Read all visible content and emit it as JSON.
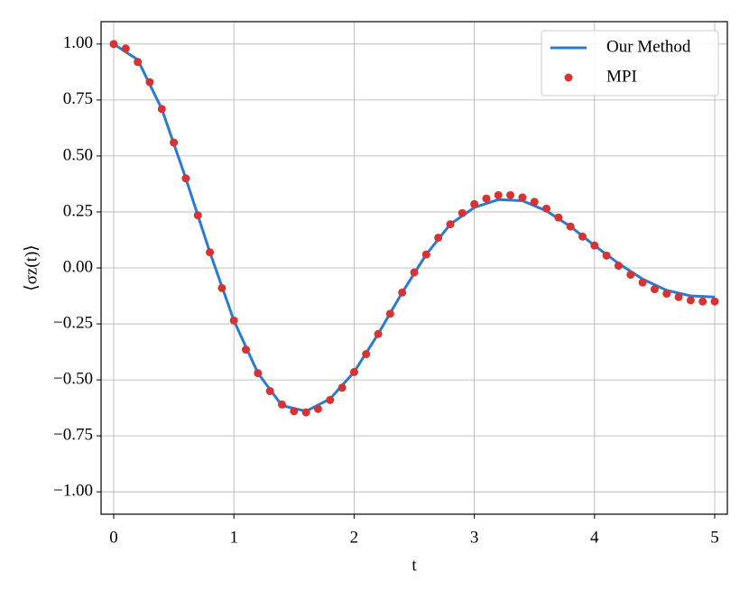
{
  "chart_data": {
    "type": "line",
    "xlabel": "t",
    "ylabel": "⟨σz(t)⟩",
    "xlim": [
      -0.105,
      5.105
    ],
    "ylim": [
      -1.1,
      1.1
    ],
    "xticks": [
      0,
      1,
      2,
      3,
      4,
      5
    ],
    "yticks": [
      {
        "value": -1,
        "label": "−1.00"
      },
      {
        "value": -0.75,
        "label": "−0.75"
      },
      {
        "value": -0.5,
        "label": "−0.50"
      },
      {
        "value": -0.25,
        "label": "−0.25"
      },
      {
        "value": 0,
        "label": "0.00"
      },
      {
        "value": 0.25,
        "label": "0.25"
      },
      {
        "value": 0.5,
        "label": "0.50"
      },
      {
        "value": 0.75,
        "label": "0.75"
      },
      {
        "value": 1,
        "label": "1.00"
      }
    ],
    "grid": true,
    "legend": "upper-right",
    "series": [
      {
        "name": "Our Method",
        "kind": "line",
        "color": "#2a7bd0",
        "x": [
          0,
          0.2,
          0.4,
          0.6,
          0.8,
          1.0,
          1.2,
          1.4,
          1.6,
          1.8,
          2.0,
          2.2,
          2.4,
          2.6,
          2.8,
          3.0,
          3.2,
          3.4,
          3.6,
          3.8,
          4.0,
          4.2,
          4.4,
          4.6,
          4.8,
          5.0
        ],
        "values": [
          1.0,
          0.93,
          0.71,
          0.4,
          0.07,
          -0.235,
          -0.47,
          -0.615,
          -0.64,
          -0.585,
          -0.465,
          -0.295,
          -0.11,
          0.06,
          0.195,
          0.27,
          0.305,
          0.3,
          0.255,
          0.185,
          0.1,
          0.02,
          -0.05,
          -0.1,
          -0.125,
          -0.13
        ]
      },
      {
        "name": "MPI",
        "kind": "scatter",
        "color": "#d43434",
        "x": [
          0,
          0.1,
          0.2,
          0.3,
          0.4,
          0.5,
          0.6,
          0.7,
          0.8,
          0.9,
          1.0,
          1.1,
          1.2,
          1.3,
          1.4,
          1.5,
          1.6,
          1.7,
          1.8,
          1.9,
          2.0,
          2.1,
          2.2,
          2.3,
          2.4,
          2.5,
          2.6,
          2.7,
          2.8,
          2.9,
          3.0,
          3.1,
          3.2,
          3.3,
          3.4,
          3.5,
          3.6,
          3.7,
          3.8,
          3.9,
          4.0,
          4.1,
          4.2,
          4.3,
          4.4,
          4.5,
          4.6,
          4.7,
          4.8,
          4.9,
          5.0
        ],
        "values": [
          1.0,
          0.98,
          0.92,
          0.83,
          0.71,
          0.56,
          0.4,
          0.235,
          0.07,
          -0.09,
          -0.235,
          -0.365,
          -0.47,
          -0.55,
          -0.61,
          -0.64,
          -0.645,
          -0.63,
          -0.59,
          -0.535,
          -0.465,
          -0.385,
          -0.295,
          -0.205,
          -0.11,
          -0.02,
          0.06,
          0.135,
          0.195,
          0.245,
          0.285,
          0.31,
          0.325,
          0.325,
          0.315,
          0.295,
          0.265,
          0.225,
          0.185,
          0.14,
          0.1,
          0.055,
          0.01,
          -0.03,
          -0.065,
          -0.095,
          -0.115,
          -0.13,
          -0.145,
          -0.15,
          -0.15
        ]
      }
    ]
  }
}
